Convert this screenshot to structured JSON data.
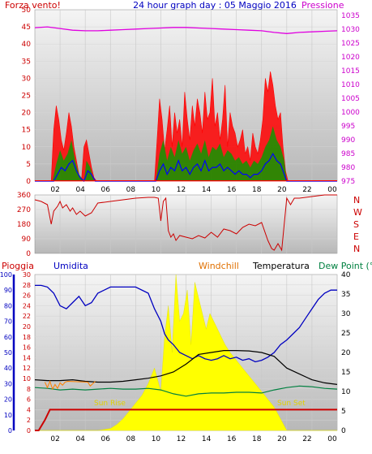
{
  "header": {
    "left_label": "Forza vento!",
    "title": "24 hour graph day : 05 Maggio 2016",
    "right_label": "Pressione"
  },
  "colors": {
    "wind": "#ff0000",
    "gust": "#c00000",
    "wind_avg": "#0000ff",
    "wind_green": "#00a000",
    "pressure": "#e000e0",
    "direction": "#cc0000",
    "humidity": "#0000c0",
    "windchill": "#ff8000",
    "temperature": "#000000",
    "dewpoint": "#008040",
    "solar": "#ffff00",
    "rain": "#cc0000",
    "sun_label": "#e0d000",
    "left_axis": "#cc0000",
    "blue_axis": "#0000c0",
    "right_axis_top": "#cc00cc"
  },
  "chart_data": [
    {
      "type": "area",
      "name_key": "wind_pressure",
      "left_axis": {
        "ticks": [
          "0",
          "5",
          "10",
          "15",
          "20",
          "25",
          "30",
          "35",
          "40",
          "45",
          "50"
        ],
        "ylim": [
          0,
          50
        ]
      },
      "right_axis": {
        "ticks": [
          "975",
          "980",
          "985",
          "990",
          "995",
          "1000",
          "1005",
          "1010",
          "1015",
          "1020",
          "1025",
          "1030",
          "1035"
        ],
        "ylim": [
          975,
          1037
        ]
      },
      "x_ticks": [
        "02",
        "04",
        "06",
        "08",
        "10",
        "12",
        "14",
        "16",
        "18",
        "20",
        "22",
        "00"
      ],
      "xlim": [
        0,
        24
      ],
      "series": [
        {
          "key": "gust",
          "x": [
            0,
            1.3,
            1.4,
            1.5,
            1.7,
            1.9,
            2.1,
            2.3,
            2.5,
            2.7,
            2.9,
            3.1,
            3.3,
            3.5,
            3.7,
            3.9,
            4.1,
            4.3,
            4.5,
            4.7,
            4.9,
            9.5,
            9.7,
            9.9,
            10.1,
            10.3,
            10.5,
            10.7,
            10.9,
            11.1,
            11.3,
            11.5,
            11.7,
            11.9,
            12.1,
            12.3,
            12.5,
            12.7,
            12.9,
            13.1,
            13.3,
            13.5,
            13.7,
            13.9,
            14.1,
            14.3,
            14.5,
            14.7,
            14.9,
            15.1,
            15.3,
            15.5,
            15.7,
            15.9,
            16.1,
            16.3,
            16.5,
            16.7,
            16.9,
            17.1,
            17.3,
            17.5,
            17.7,
            17.9,
            18.1,
            18.3,
            18.5,
            18.7,
            18.9,
            19.1,
            19.3,
            19.5,
            19.7,
            19.9,
            20.1,
            24
          ],
          "y": [
            0,
            0,
            8,
            15,
            22,
            18,
            12,
            9,
            14,
            20,
            16,
            10,
            6,
            2,
            0,
            10,
            12,
            8,
            4,
            1,
            0,
            0,
            12,
            24,
            18,
            9,
            15,
            22,
            10,
            20,
            14,
            18,
            10,
            26,
            18,
            12,
            22,
            16,
            24,
            20,
            14,
            26,
            18,
            20,
            30,
            16,
            20,
            12,
            18,
            28,
            10,
            20,
            16,
            14,
            10,
            12,
            15,
            8,
            10,
            6,
            14,
            10,
            8,
            12,
            18,
            30,
            26,
            32,
            28,
            22,
            18,
            20,
            10,
            3,
            0,
            0
          ]
        },
        {
          "key": "wind",
          "x": [
            0,
            1.4,
            1.7,
            2.0,
            2.3,
            2.6,
            2.9,
            3.2,
            3.5,
            3.9,
            4.1,
            4.4,
            4.7,
            9.6,
            9.9,
            10.2,
            10.5,
            10.8,
            11.1,
            11.4,
            11.7,
            12.0,
            12.3,
            12.6,
            12.9,
            13.2,
            13.5,
            13.8,
            14.1,
            14.4,
            14.7,
            15.0,
            15.3,
            15.6,
            15.9,
            16.2,
            16.5,
            16.8,
            17.1,
            17.4,
            17.7,
            18.0,
            18.3,
            18.6,
            18.9,
            19.2,
            19.5,
            19.8,
            20.0,
            24
          ],
          "y": [
            0,
            0,
            5,
            9,
            6,
            8,
            12,
            6,
            2,
            0,
            6,
            4,
            0,
            0,
            8,
            12,
            6,
            10,
            7,
            12,
            8,
            10,
            6,
            9,
            11,
            8,
            12,
            7,
            10,
            9,
            11,
            7,
            9,
            8,
            6,
            7,
            5,
            6,
            4,
            6,
            5,
            7,
            10,
            12,
            16,
            12,
            10,
            6,
            0,
            0
          ]
        },
        {
          "key": "wind_avg",
          "x": [
            0,
            1.5,
            1.8,
            2.1,
            2.4,
            2.7,
            3.0,
            3.3,
            3.6,
            3.9,
            4.2,
            4.5,
            4.8,
            9.6,
            9.9,
            10.2,
            10.5,
            10.8,
            11.1,
            11.4,
            11.7,
            12.0,
            12.3,
            12.6,
            12.9,
            13.2,
            13.5,
            13.8,
            14.1,
            14.4,
            14.7,
            15.0,
            15.3,
            15.6,
            15.9,
            16.2,
            16.5,
            16.8,
            17.1,
            17.4,
            17.7,
            18.0,
            18.3,
            18.6,
            18.9,
            19.2,
            19.5,
            19.8,
            20.0,
            24
          ],
          "y": [
            0,
            0,
            2,
            4,
            3,
            5,
            6,
            3,
            1,
            0,
            3,
            2,
            0,
            0,
            3,
            5,
            2,
            4,
            3,
            6,
            3,
            4,
            2,
            4,
            5,
            3,
            6,
            3,
            4,
            4,
            5,
            3,
            4,
            3,
            2,
            3,
            2,
            2,
            1,
            2,
            2,
            3,
            5,
            6,
            8,
            6,
            5,
            2,
            0,
            0
          ]
        },
        {
          "key": "pressure",
          "x": [
            0,
            1,
            2,
            3,
            4,
            5,
            6,
            7,
            8,
            9,
            10,
            11,
            12,
            13,
            14,
            15,
            16,
            17,
            18,
            19,
            20,
            21,
            22,
            23,
            24
          ],
          "y": [
            1030.5,
            1030.8,
            1030.2,
            1029.6,
            1029.4,
            1029.4,
            1029.6,
            1029.8,
            1030.0,
            1030.2,
            1030.4,
            1030.6,
            1030.6,
            1030.4,
            1030.2,
            1030.0,
            1029.8,
            1029.6,
            1029.4,
            1028.8,
            1028.4,
            1028.8,
            1029.0,
            1029.2,
            1029.4
          ]
        }
      ]
    },
    {
      "type": "line",
      "name_key": "wind_direction",
      "left_axis": {
        "ticks": [
          "0",
          "90",
          "180",
          "270",
          "360"
        ],
        "ylim": [
          0,
          360
        ]
      },
      "right_axis": {
        "ticks": [
          "N",
          "W",
          "S",
          "E",
          "N"
        ]
      },
      "xlim": [
        0,
        24
      ],
      "series": [
        {
          "key": "direction",
          "x": [
            0,
            0.5,
            1.0,
            1.3,
            1.5,
            1.8,
            2.0,
            2.2,
            2.5,
            2.8,
            3.0,
            3.3,
            3.6,
            4.0,
            4.5,
            5.0,
            6,
            7,
            8,
            9,
            9.5,
            9.8,
            10.0,
            10.2,
            10.4,
            10.6,
            10.8,
            11.0,
            11.2,
            11.5,
            12.0,
            12.5,
            13.0,
            13.5,
            14.0,
            14.5,
            15.0,
            15.5,
            16.0,
            16.5,
            17.0,
            17.5,
            18.0,
            18.5,
            18.8,
            19.0,
            19.3,
            19.6,
            20.0,
            20.3,
            20.6,
            21,
            22,
            23,
            24
          ],
          "y": [
            330,
            320,
            300,
            180,
            260,
            290,
            320,
            280,
            300,
            260,
            280,
            240,
            260,
            230,
            250,
            310,
            320,
            330,
            340,
            345,
            345,
            340,
            200,
            320,
            340,
            140,
            100,
            120,
            80,
            110,
            100,
            90,
            110,
            95,
            130,
            100,
            150,
            140,
            120,
            160,
            180,
            170,
            190,
            80,
            30,
            20,
            60,
            20,
            340,
            300,
            340,
            340,
            350,
            360,
            360
          ]
        }
      ]
    },
    {
      "type": "area",
      "name_key": "temp_humidity",
      "legend": [
        "Pioggia",
        "Umidita",
        "Windchill",
        "Temperatura",
        "Dew Point (°C"
      ],
      "left_axis_rain": {
        "ticks": [
          "0",
          "2",
          "4",
          "6",
          "8",
          "10",
          "12",
          "14",
          "16",
          "18",
          "20",
          "22",
          "24",
          "26",
          "28",
          "30"
        ],
        "ylim": [
          0,
          30
        ]
      },
      "left_axis_humidity": {
        "ticks": [
          "0",
          "10",
          "20",
          "30",
          "40",
          "50",
          "60",
          "70",
          "80",
          "90",
          "100"
        ],
        "ylim": [
          0,
          100
        ]
      },
      "right_axis": {
        "ticks": [
          "0",
          "5",
          "10",
          "15",
          "20",
          "25",
          "30",
          "35",
          "40"
        ],
        "ylim": [
          0,
          40
        ]
      },
      "x_ticks": [
        "02",
        "04",
        "06",
        "08",
        "10",
        "12",
        "14",
        "16",
        "18",
        "20",
        "22",
        "00"
      ],
      "xlim": [
        0,
        24
      ],
      "annotations": [
        "Sun Rise",
        "Sun Set"
      ],
      "series": [
        {
          "key": "solar",
          "x": [
            0,
            5,
            6,
            6.5,
            7,
            7.5,
            8,
            8.5,
            9,
            9.5,
            10,
            10.3,
            10.6,
            10.9,
            11.2,
            11.5,
            11.8,
            12.1,
            12.4,
            12.7,
            13.0,
            13.3,
            13.6,
            13.9,
            14.2,
            14.5,
            14.8,
            15.1,
            15.5,
            16,
            16.5,
            17,
            17.5,
            18,
            18.5,
            19,
            19.5,
            20,
            24
          ],
          "y": [
            0,
            0,
            0.5,
            1.5,
            3,
            5,
            7,
            9,
            12,
            16,
            10,
            24,
            32,
            20,
            40,
            28,
            30,
            36,
            22,
            38,
            34,
            30,
            26,
            30,
            28,
            26,
            24,
            22,
            20,
            18,
            16,
            14,
            12,
            10,
            8,
            6,
            3,
            0,
            0
          ]
        },
        {
          "key": "humidity",
          "x": [
            0,
            0.5,
            1,
            1.5,
            2,
            2.5,
            3,
            3.5,
            4,
            4.5,
            5,
            6,
            7,
            8,
            9,
            9.5,
            10,
            10.3,
            10.6,
            11,
            11.5,
            12,
            12.5,
            13,
            13.5,
            14,
            14.5,
            15,
            15.5,
            16,
            16.5,
            17,
            17.5,
            18,
            18.5,
            19,
            19.5,
            20,
            20.5,
            21,
            21.5,
            22,
            22.5,
            23,
            23.5,
            24
          ],
          "y": [
            93,
            93,
            92,
            88,
            80,
            78,
            82,
            86,
            80,
            82,
            88,
            92,
            92,
            92,
            88,
            78,
            70,
            62,
            58,
            55,
            50,
            48,
            46,
            48,
            46,
            45,
            46,
            48,
            46,
            47,
            45,
            46,
            44,
            45,
            47,
            50,
            55,
            58,
            62,
            66,
            72,
            78,
            84,
            88,
            90,
            90
          ]
        },
        {
          "key": "temperature",
          "x": [
            0,
            1,
            2,
            3,
            4,
            5,
            6,
            7,
            8,
            9,
            10,
            11,
            12,
            13,
            14,
            15,
            16,
            17,
            18,
            19,
            20,
            21,
            22,
            23,
            24
          ],
          "y": [
            13,
            12.8,
            12.8,
            13,
            12.6,
            12.4,
            12.4,
            12.6,
            13,
            13.4,
            14,
            15,
            17,
            19.5,
            20,
            20.5,
            20.5,
            20.4,
            20,
            19,
            16,
            14.5,
            13,
            12.2,
            11.8
          ]
        },
        {
          "key": "dewpoint",
          "x": [
            0,
            1,
            2,
            3,
            4,
            5,
            6,
            7,
            8,
            9,
            10,
            11,
            12,
            13,
            14,
            15,
            16,
            17,
            18,
            19,
            20,
            21,
            22,
            23,
            24
          ],
          "y": [
            11,
            10.8,
            10.4,
            10.6,
            10.4,
            10.6,
            10.8,
            10.6,
            10.6,
            10.8,
            10.4,
            9.4,
            8.8,
            9.4,
            9.6,
            9.6,
            9.8,
            9.8,
            9.6,
            10.4,
            11,
            11.4,
            11.2,
            10.8,
            10.6
          ]
        },
        {
          "key": "windchill",
          "x": [
            0.8,
            1.0,
            1.2,
            1.4,
            1.6,
            1.8,
            2.0,
            2.2,
            2.4,
            2.6,
            4.2,
            4.4,
            4.6,
            4.8
          ],
          "y": [
            12.4,
            11,
            12.6,
            10.6,
            11.8,
            10.8,
            12.2,
            11.6,
            12.4,
            12.6,
            12.4,
            11.4,
            12,
            12.6
          ]
        },
        {
          "key": "rain",
          "x": [
            0,
            0.3,
            0.8,
            1.2,
            5,
            6,
            7,
            8,
            9,
            10,
            11,
            12,
            13,
            14,
            15,
            16,
            17,
            18,
            19,
            20,
            21,
            22,
            23,
            23.8,
            24
          ],
          "y": [
            0,
            0,
            2,
            4,
            4,
            4,
            4,
            4,
            4,
            4,
            4,
            4,
            4,
            4,
            4,
            4,
            4,
            4,
            4,
            4,
            4,
            4,
            4,
            4,
            4
          ]
        }
      ]
    }
  ]
}
